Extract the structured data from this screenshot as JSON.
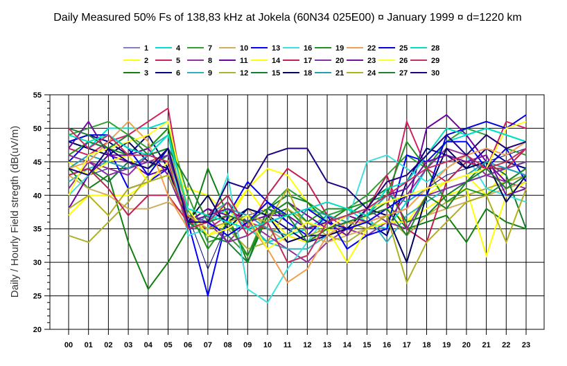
{
  "chart_data": {
    "type": "line",
    "title": "Daily Measured 50% Fs of 138,83 kHz at Jokela (60N34  025E00) ¤ January 1999 ¤ d=1220 km",
    "xlabel": "",
    "ylabel": "Daily / Hourly Field stregth (dB(uV/m)",
    "ylim": [
      20,
      55
    ],
    "yticks": [
      "20",
      "25",
      "30",
      "35",
      "40",
      "45",
      "50",
      "55"
    ],
    "categories": [
      "00",
      "01",
      "02",
      "03",
      "04",
      "05",
      "06",
      "07",
      "08",
      "09",
      "10",
      "11",
      "12",
      "13",
      "14",
      "15",
      "16",
      "17",
      "18",
      "19",
      "20",
      "21",
      "22",
      "23"
    ],
    "grid": true,
    "legend_position": "top",
    "series": [
      {
        "name": "1",
        "color": "#000080",
        "values": [
          44,
          43,
          44,
          44,
          45,
          45,
          37,
          29,
          36,
          37,
          38,
          36,
          34,
          35,
          36,
          37,
          38,
          40,
          41,
          43,
          44,
          45,
          46,
          47
        ]
      },
      {
        "name": "2",
        "color": "#ffff00",
        "values": [
          37,
          40,
          40,
          40,
          42,
          43,
          41,
          40,
          37,
          41,
          44,
          43,
          39,
          35,
          34,
          37,
          38,
          36,
          40,
          42,
          43,
          40,
          44,
          45
        ]
      },
      {
        "name": "3",
        "color": "#108010",
        "values": [
          44,
          41,
          43,
          33,
          26,
          30,
          35,
          44,
          37,
          30,
          37,
          38,
          35,
          36,
          38,
          37,
          39,
          35,
          36,
          37,
          33,
          38,
          36,
          35
        ]
      },
      {
        "name": "4",
        "color": "#00e0d0",
        "values": [
          48,
          47,
          50,
          50,
          50,
          51,
          37,
          36,
          38,
          35,
          33,
          34,
          35,
          37,
          38,
          36,
          35,
          39,
          44,
          48,
          49,
          50,
          49,
          48
        ]
      },
      {
        "name": "5",
        "color": "#d02060",
        "values": [
          47,
          46,
          48,
          49,
          51,
          53,
          36,
          35,
          37,
          36,
          35,
          34,
          33,
          35,
          36,
          37,
          38,
          51,
          44,
          42,
          45,
          44,
          51,
          50
        ]
      },
      {
        "name": "6",
        "color": "#000080",
        "values": [
          48,
          49,
          48,
          46,
          49,
          44,
          36,
          38,
          36,
          38,
          37,
          35,
          33,
          34,
          35,
          36,
          34,
          42,
          47,
          46,
          44,
          47,
          45,
          44
        ]
      },
      {
        "name": "7",
        "color": "#30a030",
        "values": [
          49,
          50,
          51,
          49,
          47,
          50,
          40,
          33,
          34,
          31,
          38,
          41,
          39,
          37,
          38,
          40,
          43,
          46,
          44,
          48,
          50,
          49,
          47,
          46
        ]
      },
      {
        "name": "8",
        "color": "#9030a0",
        "values": [
          41,
          45,
          44,
          43,
          46,
          45,
          36,
          37,
          33,
          36,
          34,
          32,
          30,
          33,
          35,
          34,
          36,
          40,
          44,
          47,
          46,
          43,
          42,
          41
        ]
      },
      {
        "name": "9",
        "color": "#30b0c0",
        "values": [
          42,
          44,
          45,
          46,
          47,
          49,
          35,
          37,
          39,
          36,
          33,
          32,
          32,
          34,
          36,
          37,
          33,
          37,
          39,
          41,
          42,
          43,
          44,
          45
        ]
      },
      {
        "name": "10",
        "color": "#d0b060",
        "values": [
          43,
          41,
          40,
          38,
          38,
          39,
          37,
          34,
          35,
          38,
          35,
          33,
          34,
          33,
          34,
          35,
          36,
          36,
          37,
          38,
          39,
          40,
          41,
          42
        ]
      },
      {
        "name": "11",
        "color": "#7000a0",
        "values": [
          38,
          43,
          46,
          45,
          43,
          44,
          36,
          38,
          37,
          36,
          37,
          39,
          37,
          35,
          37,
          36,
          37,
          38,
          50,
          52,
          49,
          45,
          42,
          44
        ]
      },
      {
        "name": "12",
        "color": "#b0b030",
        "values": [
          34,
          33,
          36,
          39,
          43,
          47,
          38,
          34,
          35,
          32,
          33,
          38,
          36,
          34,
          33,
          35,
          37,
          34,
          37,
          39,
          40,
          41,
          42,
          43
        ]
      },
      {
        "name": "13",
        "color": "#0000ff",
        "values": [
          45,
          48,
          47,
          41,
          42,
          44,
          36,
          25,
          37,
          42,
          39,
          36,
          34,
          37,
          32,
          34,
          35,
          46,
          45,
          48,
          48,
          44,
          47,
          42
        ]
      },
      {
        "name": "14",
        "color": "#ffff00",
        "values": [
          45,
          43,
          45,
          46,
          42,
          45,
          36,
          34,
          36,
          41,
          37,
          34,
          33,
          35,
          30,
          35,
          36,
          36,
          38,
          40,
          41,
          31,
          40,
          42
        ]
      },
      {
        "name": "15",
        "color": "#108030",
        "values": [
          43,
          44,
          42,
          45,
          44,
          46,
          36,
          34,
          33,
          30,
          38,
          40,
          39,
          36,
          37,
          39,
          41,
          36,
          37,
          40,
          42,
          45,
          43,
          35
        ]
      },
      {
        "name": "16",
        "color": "#40e0e0",
        "values": [
          40,
          43,
          47,
          49,
          46,
          47,
          34,
          35,
          43,
          26,
          24,
          29,
          33,
          37,
          36,
          45,
          46,
          44,
          42,
          44,
          46,
          41,
          40,
          39
        ]
      },
      {
        "name": "17",
        "color": "#c02050",
        "values": [
          43,
          44,
          41,
          37,
          40,
          40,
          36,
          37,
          40,
          35,
          40,
          44,
          42,
          37,
          35,
          38,
          43,
          35,
          33,
          42,
          45,
          44,
          44,
          47
        ]
      },
      {
        "name": "18",
        "color": "#000060",
        "values": [
          48,
          47,
          46,
          48,
          45,
          44,
          36,
          40,
          35,
          38,
          37,
          33,
          34,
          34,
          35,
          38,
          37,
          30,
          40,
          47,
          44,
          45,
          39,
          43
        ]
      },
      {
        "name": "19",
        "color": "#209020",
        "values": [
          46,
          48,
          47,
          46,
          47,
          50,
          38,
          32,
          36,
          31,
          37,
          39,
          36,
          38,
          38,
          39,
          40,
          48,
          44,
          39,
          41,
          40,
          42,
          44
        ]
      },
      {
        "name": "20",
        "color": "#8030a0",
        "values": [
          46,
          45,
          43,
          44,
          45,
          46,
          37,
          36,
          33,
          34,
          36,
          37,
          35,
          36,
          37,
          38,
          36,
          35,
          40,
          41,
          42,
          43,
          44,
          45
        ]
      },
      {
        "name": "21",
        "color": "#20a0b0",
        "values": [
          44,
          46,
          45,
          44,
          46,
          47,
          36,
          37,
          38,
          37,
          35,
          34,
          38,
          37,
          36,
          37,
          40,
          39,
          41,
          42,
          43,
          45,
          44,
          43
        ]
      },
      {
        "name": "22",
        "color": "#f0a050",
        "values": [
          44,
          45,
          48,
          51,
          48,
          40,
          35,
          36,
          37,
          36,
          32,
          27,
          29,
          34,
          36,
          36,
          37,
          38,
          41,
          44,
          46,
          47,
          46,
          48
        ]
      },
      {
        "name": "23",
        "color": "#7010a0",
        "values": [
          47,
          51,
          46,
          46,
          47,
          43,
          36,
          37,
          38,
          36,
          37,
          37,
          35,
          36,
          34,
          38,
          40,
          41,
          45,
          46,
          45,
          46,
          40,
          41
        ]
      },
      {
        "name": "24",
        "color": "#b0b020",
        "values": [
          38,
          40,
          37,
          41,
          42,
          43,
          37,
          35,
          36,
          37,
          36,
          41,
          34,
          35,
          36,
          35,
          37,
          27,
          33,
          36,
          39,
          40,
          33,
          41
        ]
      },
      {
        "name": "25",
        "color": "#0000e0",
        "values": [
          48,
          49,
          49,
          47,
          43,
          47,
          36,
          36,
          34,
          36,
          39,
          37,
          38,
          36,
          35,
          36,
          38,
          40,
          40,
          49,
          50,
          51,
          50,
          52
        ]
      },
      {
        "name": "26",
        "color": "#ffff20",
        "values": [
          40,
          46,
          47,
          48,
          49,
          51,
          38,
          34,
          35,
          37,
          32,
          34,
          36,
          35,
          37,
          38,
          39,
          40,
          41,
          42,
          43,
          44,
          50,
          51
        ]
      },
      {
        "name": "27",
        "color": "#208030",
        "values": [
          50,
          49,
          47,
          49,
          46,
          47,
          42,
          36,
          37,
          36,
          38,
          37,
          33,
          35,
          36,
          37,
          38,
          34,
          40,
          38,
          42,
          44,
          41,
          43
        ]
      },
      {
        "name": "28",
        "color": "#00e0c0",
        "values": [
          49,
          48,
          49,
          47,
          46,
          49,
          38,
          37,
          36,
          35,
          36,
          37,
          38,
          39,
          38,
          37,
          41,
          42,
          46,
          50,
          49,
          50,
          49,
          48
        ]
      },
      {
        "name": "29",
        "color": "#c03060",
        "values": [
          50,
          47,
          49,
          46,
          46,
          45,
          35,
          36,
          39,
          34,
          36,
          30,
          31,
          36,
          37,
          38,
          40,
          42,
          44,
          45,
          46,
          44,
          45,
          47
        ]
      },
      {
        "name": "30",
        "color": "#200080",
        "values": [
          44,
          43,
          47,
          45,
          44,
          47,
          36,
          36,
          42,
          41,
          46,
          47,
          47,
          42,
          41,
          38,
          42,
          43,
          46,
          49,
          46,
          49,
          47,
          48
        ]
      }
    ]
  }
}
